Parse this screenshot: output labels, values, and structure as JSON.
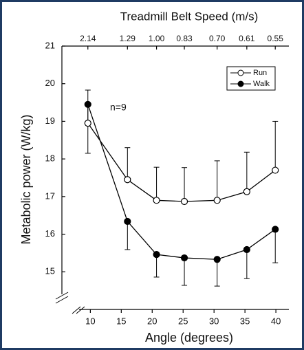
{
  "chart_data": {
    "type": "line",
    "x2label": "Treadmill Belt Speed (m/s)",
    "xlabel": "Angle (degrees)",
    "ylabel": "Metabolic power (W/kg)",
    "annotation": "n=9",
    "x": [
      9.6,
      16,
      20.7,
      25.2,
      30.5,
      35.3,
      39.9
    ],
    "series": [
      {
        "name": "Run",
        "color": "#000000",
        "marker_fill": "#ffffff",
        "values": [
          18.95,
          17.45,
          16.9,
          16.87,
          16.9,
          17.13,
          17.7
        ],
        "errors": [
          0.88,
          0.85,
          0.88,
          0.9,
          1.05,
          1.05,
          1.3
        ],
        "error_direction": "up"
      },
      {
        "name": "Walk",
        "color": "#000000",
        "marker_fill": "#000000",
        "values": [
          19.45,
          16.34,
          15.46,
          15.37,
          15.33,
          15.59,
          16.13
        ],
        "errors": [
          1.3,
          0.75,
          0.6,
          0.73,
          0.71,
          0.77,
          0.89
        ],
        "error_direction": "down"
      }
    ],
    "xlim": [
      5.4,
      42.1
    ],
    "ylim": [
      14,
      21
    ],
    "xticks": [
      10,
      15,
      20,
      25,
      30,
      35,
      40
    ],
    "yticks": [
      15,
      16,
      17,
      18,
      19,
      20,
      21
    ],
    "x2ticks": [
      {
        "value": 9.6,
        "label": "2.14"
      },
      {
        "value": 16,
        "label": "1.29"
      },
      {
        "value": 20.7,
        "label": "1.00"
      },
      {
        "value": 25.2,
        "label": "0.83"
      },
      {
        "value": 30.5,
        "label": "0.70"
      },
      {
        "value": 35.3,
        "label": "0.61"
      },
      {
        "value": 39.9,
        "label": "0.55"
      }
    ],
    "legend": "upper right"
  }
}
